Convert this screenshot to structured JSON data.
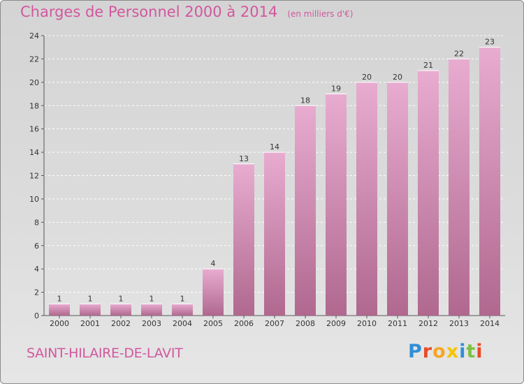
{
  "header": {
    "title": "Charges de Personnel 2000 à 2014",
    "subtitle": "(en milliers d'€)"
  },
  "footer": {
    "commune": "SAINT-HILAIRE-DE-LAVIT",
    "logo_text": "Proxiti",
    "logo_colors": [
      "#2f8fd8",
      "#e84a26",
      "#f5a623",
      "#f5c400",
      "#2f8fd8",
      "#7cc142",
      "#e84a26"
    ]
  },
  "colors": {
    "bar_top": "#e8acd0",
    "bar_bottom": "#b0688f",
    "title": "#d2579e",
    "axis_text": "#333333"
  },
  "chart_data": {
    "type": "bar",
    "categories": [
      "2000",
      "2001",
      "2002",
      "2003",
      "2004",
      "2005",
      "2006",
      "2007",
      "2008",
      "2009",
      "2010",
      "2011",
      "2012",
      "2013",
      "2014"
    ],
    "values": [
      1,
      1,
      1,
      1,
      1,
      4,
      13,
      14,
      18,
      19,
      20,
      20,
      21,
      22,
      23
    ],
    "data_labels": [
      "1",
      "1",
      "1",
      "1",
      "1",
      "4",
      "13",
      "14",
      "18",
      "19",
      "20",
      "20",
      "21",
      "22",
      "23"
    ],
    "yticks": [
      "0",
      "2",
      "4",
      "6",
      "8",
      "10",
      "12",
      "14",
      "16",
      "18",
      "20",
      "22",
      "24"
    ],
    "ylim": [
      0,
      24
    ],
    "grid": true,
    "xlabel": "",
    "ylabel": ""
  }
}
